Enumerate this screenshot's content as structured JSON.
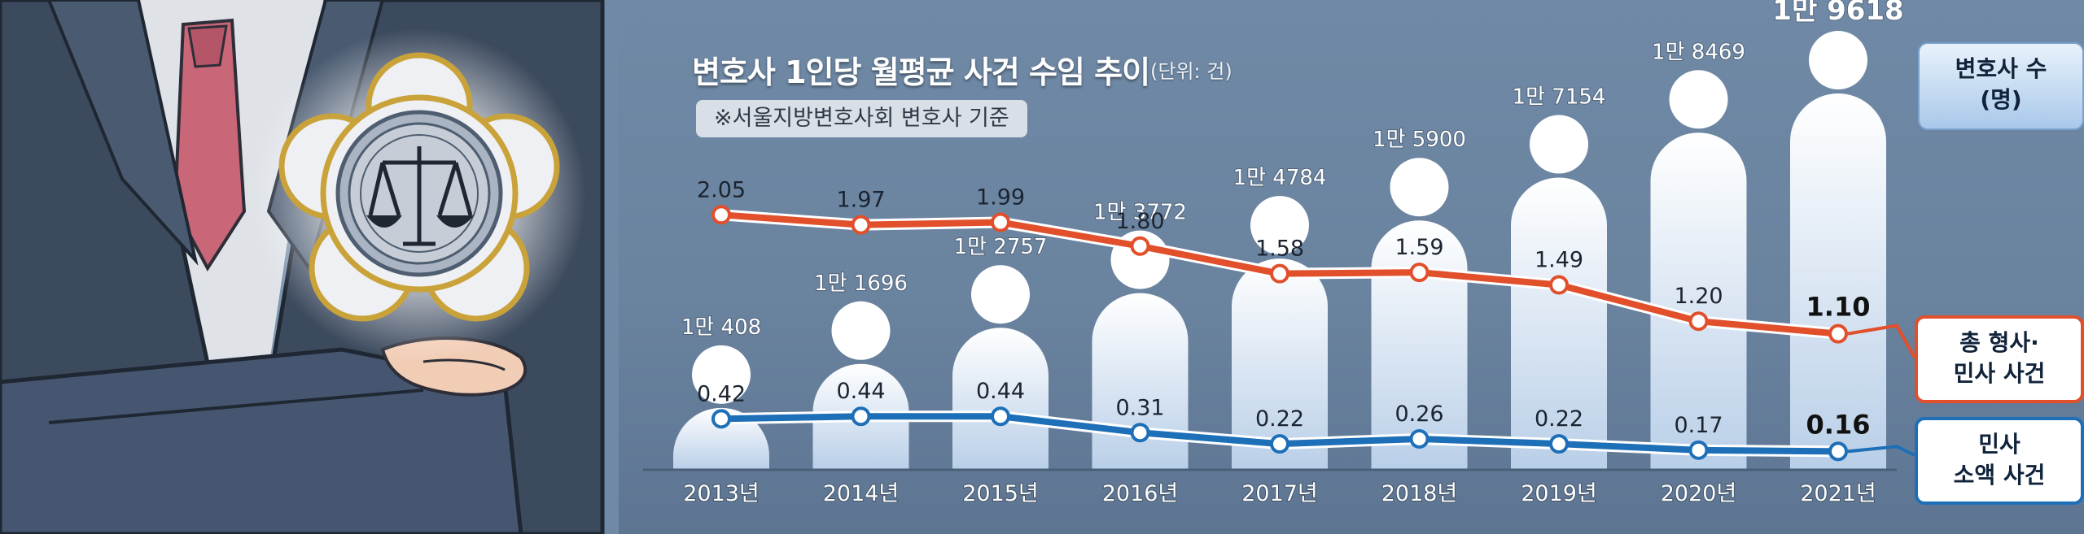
{
  "title": "변호사 1인당 월평균 사건 수임 추이",
  "unit": "(단위: 건)",
  "note": "※서울지방변호사회 변호사 기준",
  "legend": {
    "people": [
      "변호사 수",
      "(명)"
    ],
    "total": [
      "총 형사·",
      "민사 사건"
    ],
    "small": [
      "민사",
      "소액 사건"
    ]
  },
  "chart_data": {
    "type": "line",
    "categories": [
      "2013년",
      "2014년",
      "2015년",
      "2016년",
      "2017년",
      "2018년",
      "2019년",
      "2020년",
      "2021년"
    ],
    "lawyers": {
      "name": "변호사 수 (명)",
      "values": [
        10408,
        11696,
        12757,
        13772,
        14784,
        15900,
        17154,
        18469,
        19618
      ],
      "labels": [
        "1만 408",
        "1만 1696",
        "1만 2757",
        "1만 3772",
        "1만 4784",
        "1만 5900",
        "1만 7154",
        "1만 8469",
        "1만 9618"
      ],
      "color": "#e6eef8"
    },
    "series": [
      {
        "name": "총 형사·민사 사건",
        "values": [
          2.05,
          1.97,
          1.99,
          1.8,
          1.58,
          1.59,
          1.49,
          1.2,
          1.1
        ],
        "labels": [
          "2.05",
          "1.97",
          "1.99",
          "1.80",
          "1.58",
          "1.59",
          "1.49",
          "1.20",
          "1.10"
        ],
        "color": "#e14f2b"
      },
      {
        "name": "민사 소액 사건",
        "values": [
          0.42,
          0.44,
          0.44,
          0.31,
          0.22,
          0.26,
          0.22,
          0.17,
          0.16
        ],
        "labels": [
          "0.42",
          "0.44",
          "0.44",
          "0.31",
          "0.22",
          "0.26",
          "0.22",
          "0.17",
          "0.16"
        ],
        "color": "#1d6fb8"
      }
    ],
    "ylim": [
      0,
      2.5
    ],
    "grid": false,
    "legend_position": "right"
  }
}
